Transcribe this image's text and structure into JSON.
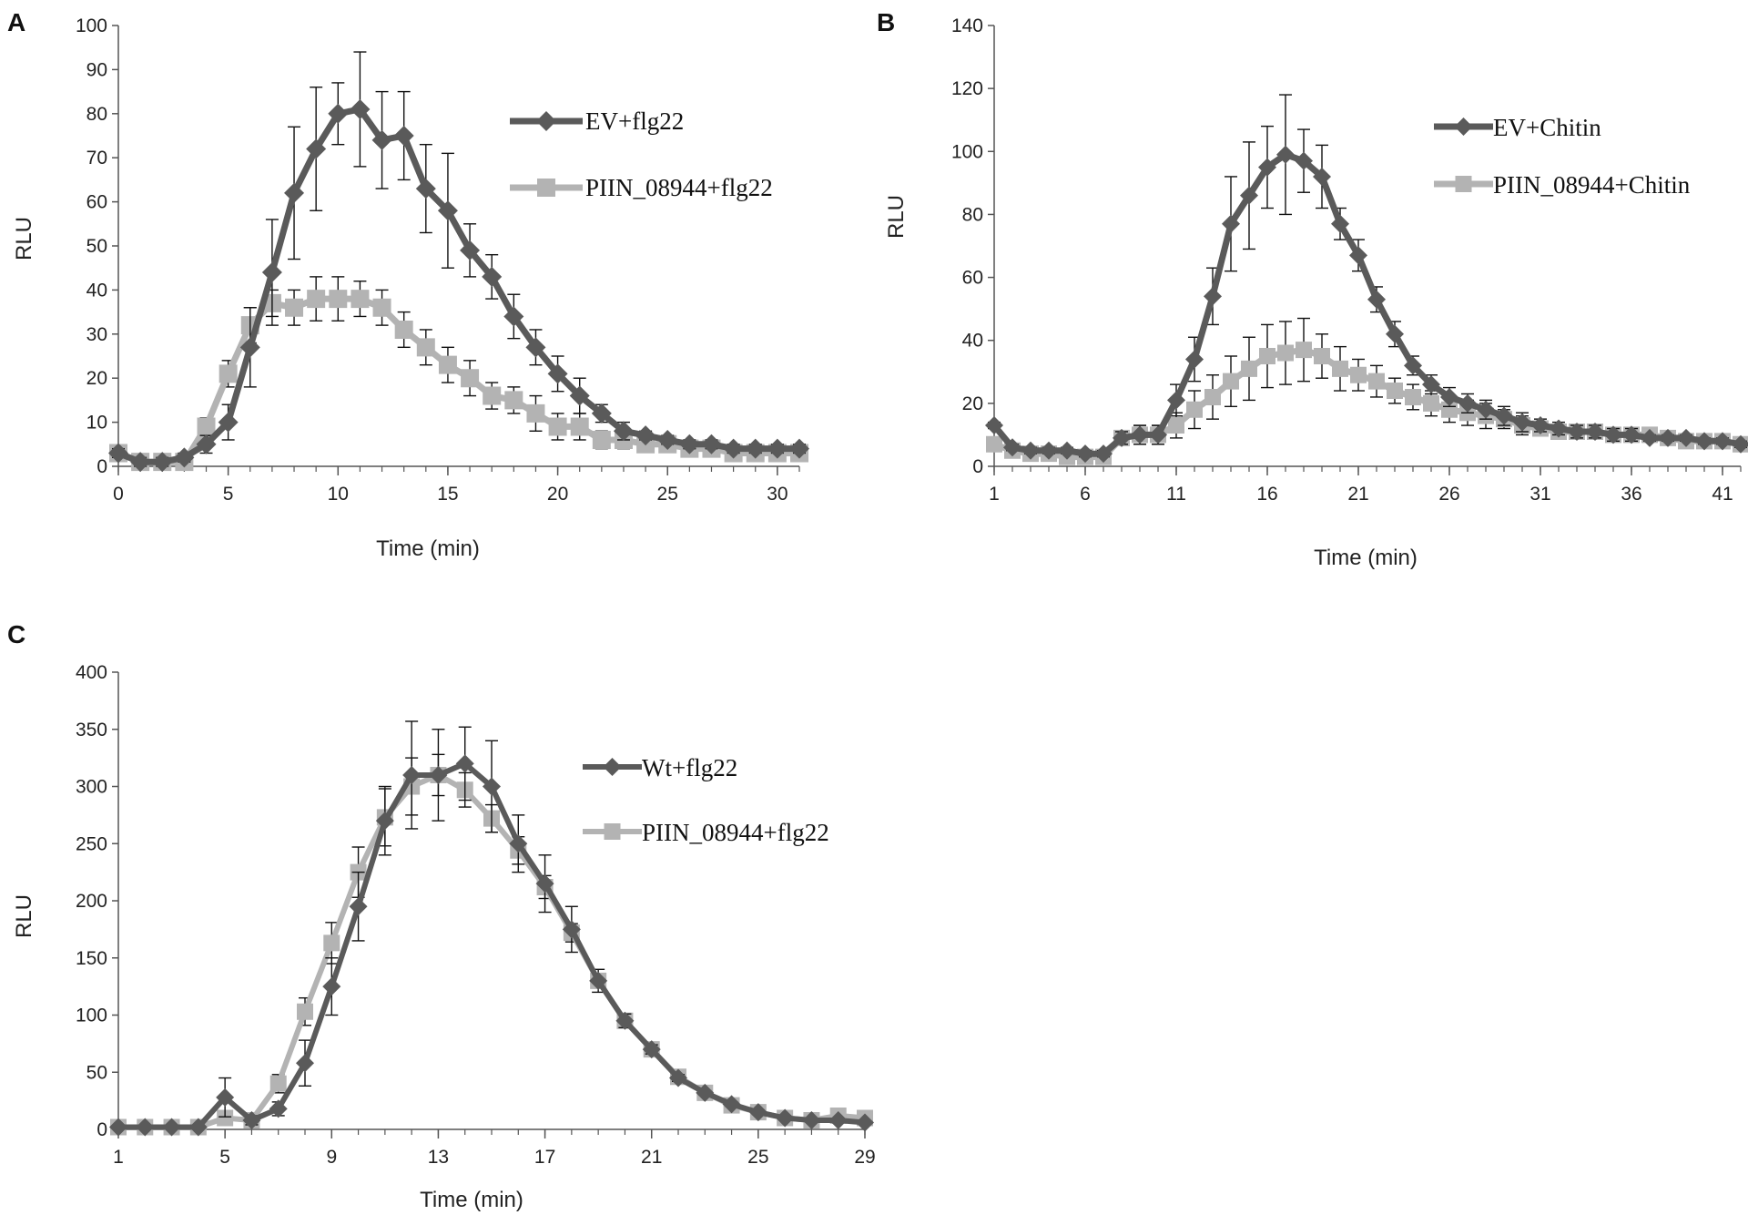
{
  "figure": {
    "colors": {
      "series_dark": "#5a5a5a",
      "series_light": "#b3b3b3",
      "axis": "#555555",
      "text": "#222222",
      "error_bar": "#111111"
    }
  },
  "chart_data": [
    {
      "panel": "A",
      "type": "line",
      "title": "",
      "xlabel": "Time (min)",
      "ylabel": "RLU",
      "xlim": [
        0,
        31
      ],
      "ylim": [
        0,
        100
      ],
      "xticks": [
        0,
        5,
        10,
        15,
        20,
        25,
        30
      ],
      "yticks": [
        0,
        10,
        20,
        30,
        40,
        50,
        60,
        70,
        80,
        90,
        100
      ],
      "x": [
        0,
        1,
        2,
        3,
        4,
        5,
        6,
        7,
        8,
        9,
        10,
        11,
        12,
        13,
        14,
        15,
        16,
        17,
        18,
        19,
        20,
        21,
        22,
        23,
        24,
        25,
        26,
        27,
        28,
        29,
        30,
        31
      ],
      "legend_position": "top-right",
      "series": [
        {
          "name": "EV+flg22",
          "marker": "diamond",
          "values": [
            3,
            1,
            1,
            2,
            5,
            10,
            27,
            44,
            62,
            72,
            80,
            81,
            74,
            75,
            63,
            58,
            49,
            43,
            34,
            27,
            21,
            16,
            12,
            8,
            7,
            6,
            5,
            5,
            4,
            4,
            4,
            4
          ],
          "errors": [
            1,
            1,
            1,
            1,
            2,
            4,
            9,
            12,
            15,
            14,
            7,
            13,
            11,
            10,
            10,
            13,
            6,
            5,
            5,
            4,
            4,
            4,
            2,
            2,
            1,
            1,
            1,
            1,
            1,
            1,
            1,
            1
          ]
        },
        {
          "name": "PIIN_08944+flg22",
          "marker": "square",
          "values": [
            3,
            1,
            1,
            1,
            9,
            21,
            32,
            37,
            36,
            38,
            38,
            38,
            36,
            31,
            27,
            23,
            20,
            16,
            15,
            12,
            9,
            9,
            6,
            6,
            5,
            5,
            4,
            4,
            3,
            3,
            3,
            3
          ],
          "errors": [
            1,
            1,
            1,
            1,
            2,
            3,
            4,
            3,
            4,
            5,
            5,
            4,
            4,
            4,
            4,
            4,
            4,
            3,
            3,
            4,
            3,
            3,
            2,
            2,
            1,
            1,
            1,
            1,
            1,
            1,
            1,
            1
          ]
        }
      ]
    },
    {
      "panel": "B",
      "type": "line",
      "title": "",
      "xlabel": "Time (min)",
      "ylabel": "RLU",
      "xlim": [
        1,
        42
      ],
      "ylim": [
        0,
        140
      ],
      "xticks": [
        1,
        6,
        11,
        16,
        21,
        26,
        31,
        36,
        41
      ],
      "yticks": [
        0,
        20,
        40,
        60,
        80,
        100,
        120,
        140
      ],
      "x": [
        1,
        2,
        3,
        4,
        5,
        6,
        7,
        8,
        9,
        10,
        11,
        12,
        13,
        14,
        15,
        16,
        17,
        18,
        19,
        20,
        21,
        22,
        23,
        24,
        25,
        26,
        27,
        28,
        29,
        30,
        31,
        32,
        33,
        34,
        35,
        36,
        37,
        38,
        39,
        40,
        41,
        42
      ],
      "legend_position": "top-right",
      "series": [
        {
          "name": "EV+Chitin",
          "marker": "diamond",
          "values": [
            13,
            6,
            5,
            5,
            5,
            4,
            4,
            9,
            10,
            10,
            21,
            34,
            54,
            77,
            86,
            95,
            99,
            97,
            92,
            77,
            67,
            53,
            42,
            32,
            26,
            22,
            20,
            18,
            16,
            14,
            13,
            12,
            11,
            11,
            10,
            10,
            9,
            9,
            9,
            8,
            8,
            7
          ],
          "errors": [
            1,
            1,
            1,
            1,
            1,
            1,
            1,
            2,
            3,
            3,
            5,
            7,
            9,
            15,
            17,
            13,
            19,
            10,
            10,
            5,
            5,
            4,
            4,
            3,
            3,
            3,
            3,
            3,
            3,
            3,
            2,
            2,
            2,
            2,
            2,
            2,
            1,
            1,
            1,
            1,
            1,
            1
          ]
        },
        {
          "name": "PIIN_08944+Chitin",
          "marker": "square",
          "values": [
            7,
            5,
            4,
            4,
            3,
            3,
            3,
            9,
            10,
            10,
            13,
            18,
            22,
            27,
            31,
            35,
            36,
            37,
            35,
            31,
            29,
            27,
            24,
            22,
            20,
            18,
            17,
            16,
            15,
            13,
            12,
            11,
            11,
            11,
            10,
            10,
            10,
            9,
            8,
            8,
            8,
            7
          ],
          "errors": [
            1,
            1,
            1,
            1,
            1,
            1,
            1,
            2,
            3,
            3,
            4,
            6,
            7,
            8,
            10,
            10,
            10,
            10,
            7,
            7,
            5,
            5,
            4,
            4,
            4,
            4,
            4,
            4,
            3,
            3,
            2,
            2,
            2,
            2,
            2,
            2,
            1,
            1,
            1,
            1,
            1,
            1
          ]
        }
      ]
    },
    {
      "panel": "C",
      "type": "line",
      "title": "",
      "xlabel": "Time (min)",
      "ylabel": "RLU",
      "xlim": [
        1,
        29
      ],
      "ylim": [
        0,
        400
      ],
      "xticks": [
        1,
        5,
        9,
        13,
        17,
        21,
        25,
        29
      ],
      "yticks": [
        0,
        50,
        100,
        150,
        200,
        250,
        300,
        350,
        400
      ],
      "x": [
        1,
        2,
        3,
        4,
        5,
        6,
        7,
        8,
        9,
        10,
        11,
        12,
        13,
        14,
        15,
        16,
        17,
        18,
        19,
        20,
        21,
        22,
        23,
        24,
        25,
        26,
        27,
        28,
        29
      ],
      "legend_position": "top-right",
      "series": [
        {
          "name": "Wt+flg22",
          "marker": "diamond",
          "values": [
            2,
            2,
            2,
            2,
            28,
            8,
            18,
            58,
            125,
            195,
            270,
            310,
            310,
            320,
            300,
            250,
            215,
            175,
            130,
            95,
            70,
            45,
            32,
            22,
            15,
            10,
            8,
            8,
            6
          ],
          "errors": [
            1,
            1,
            1,
            1,
            17,
            4,
            6,
            20,
            25,
            30,
            30,
            47,
            40,
            32,
            40,
            25,
            25,
            20,
            10,
            6,
            4,
            3,
            2,
            2,
            2,
            2,
            1,
            1,
            1
          ]
        },
        {
          "name": "PIIN_08944+flg22",
          "marker": "square",
          "values": [
            2,
            2,
            2,
            2,
            10,
            8,
            40,
            103,
            163,
            225,
            273,
            300,
            310,
            297,
            272,
            244,
            212,
            172,
            130,
            95,
            70,
            46,
            32,
            21,
            15,
            10,
            8,
            12,
            10
          ],
          "errors": [
            1,
            1,
            1,
            1,
            4,
            4,
            8,
            12,
            18,
            22,
            25,
            25,
            18,
            15,
            12,
            12,
            10,
            8,
            6,
            5,
            4,
            3,
            2,
            2,
            2,
            2,
            1,
            1,
            1
          ]
        }
      ]
    }
  ]
}
